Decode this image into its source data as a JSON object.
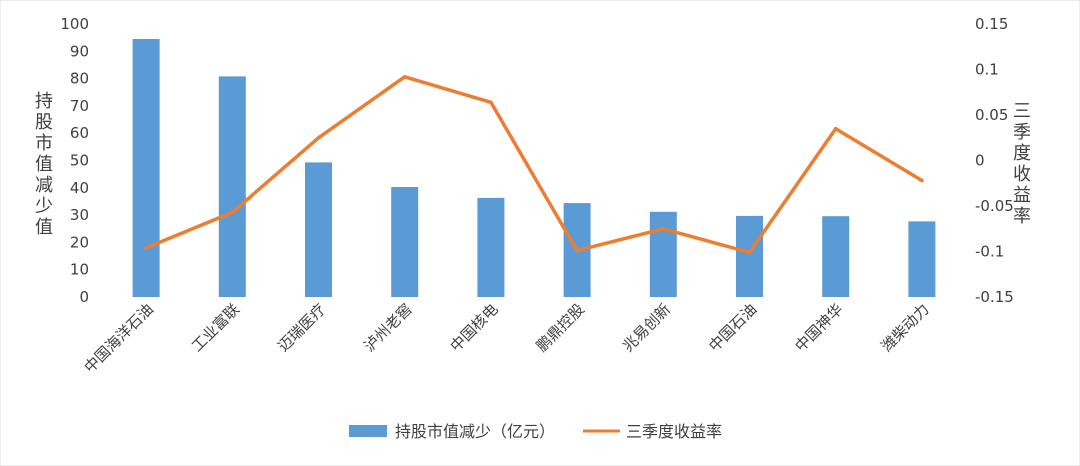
{
  "chart_data": {
    "type": "bar",
    "categories": [
      "中国海洋石油",
      "工业富联",
      "迈瑞医疗",
      "泸州老窖",
      "中国核电",
      "鹏鼎控股",
      "兆易创新",
      "中国石油",
      "中国神华",
      "潍柴动力"
    ],
    "series": [
      {
        "name": "持股市值减少（亿元）",
        "type": "bar",
        "axis": "left",
        "color": "#5b9bd5",
        "values": [
          94.5,
          80.8,
          49.3,
          40.3,
          36.3,
          34.4,
          31.2,
          29.7,
          29.6,
          27.7
        ]
      },
      {
        "name": "三季度收益率",
        "type": "line",
        "axis": "right",
        "color": "#ed7d31",
        "values": [
          -0.096,
          -0.057,
          0.025,
          0.092,
          0.064,
          -0.099,
          -0.075,
          -0.101,
          0.035,
          -0.022
        ]
      }
    ],
    "ylabel": "持股市值减少值",
    "ylabel_right": "三季度收益率",
    "ylim": [
      0,
      100
    ],
    "y_ticks": [
      "0",
      "10",
      "20",
      "30",
      "40",
      "50",
      "60",
      "70",
      "80",
      "90",
      "100"
    ],
    "ylim_right": [
      -0.15,
      0.15
    ],
    "y2_ticks": [
      "-0.15",
      "-0.1",
      "-0.05",
      "0",
      "0.05",
      "0.1",
      "0.15"
    ],
    "grid": false,
    "legend_position": "bottom"
  }
}
